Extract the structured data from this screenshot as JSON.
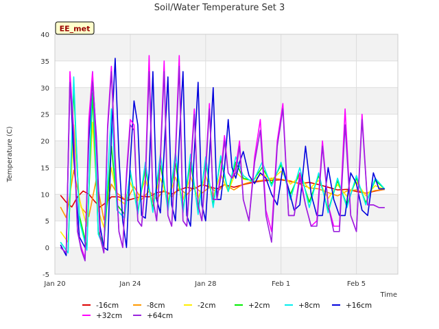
{
  "chart_data": {
    "type": "line",
    "title": "Soil/Water Temperature Set 3",
    "xlabel": "Time",
    "ylabel": "Temperature (C)",
    "site_badge": "EE_met",
    "xlim": [
      0,
      18.2
    ],
    "ylim": [
      -5,
      40
    ],
    "yticks": [
      -5,
      0,
      5,
      10,
      15,
      20,
      25,
      30,
      35,
      40
    ],
    "xticks": [
      {
        "day": 0,
        "label": "Jan 20"
      },
      {
        "day": 4,
        "label": "Jan 24"
      },
      {
        "day": 8,
        "label": "Jan 28"
      },
      {
        "day": 12,
        "label": "Feb 1"
      },
      {
        "day": 16,
        "label": "Feb 5"
      }
    ],
    "grid": true,
    "legend_position": "bottom",
    "x_units": "days since Jan 20",
    "series": [
      {
        "name": "-16cm",
        "color": "#dd0000",
        "x": [
          0.3,
          0.6,
          0.9,
          1.2,
          1.5,
          1.8,
          2.1,
          2.4,
          2.7,
          3.0,
          3.4,
          3.8,
          4.2,
          4.6,
          5.0,
          5.4,
          5.8,
          6.2,
          6.6,
          7.0,
          7.4,
          7.8,
          8.2,
          8.6,
          9.0,
          9.5,
          10.0,
          10.5,
          11.0,
          11.5,
          12.0,
          12.5,
          13.0,
          13.5,
          14.0,
          14.5,
          15.0,
          15.5,
          16.0,
          16.5,
          17.0,
          17.5
        ],
        "y": [
          9.8,
          8.5,
          7.6,
          9.5,
          10.6,
          10,
          8.7,
          7.6,
          8.4,
          9.5,
          9.5,
          8.8,
          9.2,
          9.6,
          9.5,
          10.3,
          10.5,
          10,
          10.8,
          11.3,
          11,
          11.8,
          11.4,
          11,
          11.8,
          11.3,
          11.8,
          12.2,
          12.5,
          12.6,
          12.7,
          12.4,
          12,
          12.2,
          11.8,
          11.3,
          10.8,
          10.9,
          10.5,
          10.2,
          10.6,
          10.9
        ]
      },
      {
        "name": "-8cm",
        "color": "#ff9900",
        "x": [
          0.3,
          0.6,
          1.0,
          1.4,
          1.8,
          2.2,
          2.6,
          3.0,
          3.3,
          3.8,
          4.2,
          4.6,
          5.0,
          5.4,
          5.8,
          6.2,
          6.6,
          7.0,
          7.4,
          7.8,
          8.2,
          8.6,
          9.0,
          9.5,
          10.0,
          10.5,
          11.0,
          11.5,
          12.0,
          12.5,
          13.0,
          13.5,
          14.0,
          14.5,
          15.0,
          15.5,
          16.0,
          16.5,
          17.0,
          17.5
        ],
        "y": [
          7.6,
          5.6,
          14.5,
          7.5,
          5.8,
          12.8,
          5.2,
          11.9,
          10.2,
          8.8,
          11.4,
          9,
          10.6,
          9.1,
          10.8,
          9.5,
          11.2,
          9.9,
          11.5,
          10.2,
          11.3,
          10.4,
          11.8,
          10.8,
          11.9,
          12.4,
          12.6,
          13,
          12.8,
          12.5,
          11.9,
          11.2,
          11,
          10.3,
          9.7,
          10.6,
          10.8,
          10.2,
          10.7,
          10.9
        ]
      },
      {
        "name": "-2cm",
        "color": "#ffee00",
        "x": [
          0.3,
          0.7,
          1.0,
          1.3,
          1.7,
          2.0,
          2.3,
          2.6,
          3.0,
          3.3,
          3.7,
          4.0,
          4.4,
          4.8,
          5.2,
          5.6,
          6.0,
          6.4,
          6.8,
          7.2,
          7.6,
          8.0,
          8.4,
          8.8,
          9.2,
          9.6,
          10.0,
          10.5,
          11.0,
          11.5,
          12.0,
          12.5,
          13.0,
          13.5,
          14.0,
          14.5,
          15.0,
          15.5,
          16.0,
          16.5,
          17.0,
          17.5
        ],
        "y": [
          3,
          1,
          23,
          9,
          4,
          23.5,
          7,
          3.8,
          15,
          9.2,
          8.2,
          12.2,
          8.8,
          12.8,
          8.5,
          13,
          8.8,
          13.2,
          9,
          13.3,
          9.2,
          13.4,
          9.5,
          13.8,
          10.5,
          14.2,
          12.8,
          12.6,
          13.8,
          12.7,
          14.3,
          11.9,
          13.2,
          11,
          12.6,
          9.2,
          11.8,
          9.6,
          12.3,
          9.7,
          11.6,
          10.9
        ]
      },
      {
        "name": "+2cm",
        "color": "#00ee00",
        "x": [
          0.3,
          0.7,
          1.0,
          1.3,
          1.7,
          2.0,
          2.3,
          2.6,
          3.0,
          3.3,
          3.7,
          4.0,
          4.4,
          4.8,
          5.2,
          5.6,
          6.0,
          6.4,
          6.8,
          7.2,
          7.6,
          8.0,
          8.4,
          8.8,
          9.2,
          9.6,
          10.0,
          10.5,
          11.0,
          11.5,
          12.0,
          12.5,
          13.0,
          13.5,
          14.0,
          14.5,
          15.0,
          15.5,
          16.0,
          16.5,
          17.0,
          17.5
        ],
        "y": [
          1,
          -1,
          30,
          6,
          0,
          29,
          3,
          0.5,
          19,
          8,
          6.2,
          14,
          6.8,
          14.8,
          7.4,
          15.5,
          7.8,
          15.8,
          7.2,
          16,
          7,
          16.2,
          8,
          16.5,
          10.5,
          16,
          13,
          12.5,
          15,
          12,
          15.5,
          10,
          14,
          8.5,
          13.5,
          7,
          12.5,
          8,
          13,
          8.4,
          12.6,
          11
        ]
      },
      {
        "name": "+8cm",
        "color": "#00eeee",
        "x": [
          0.3,
          0.7,
          1.0,
          1.3,
          1.7,
          2.0,
          2.3,
          2.6,
          3.0,
          3.3,
          3.7,
          4.0,
          4.4,
          4.8,
          5.2,
          5.6,
          6.0,
          6.4,
          6.8,
          7.2,
          7.6,
          8.0,
          8.4,
          8.8,
          9.2,
          9.6,
          10.0,
          10.5,
          11.0,
          11.5,
          12.0,
          12.5,
          13.0,
          13.5,
          14.0,
          14.5,
          15.0,
          15.5,
          16.0,
          16.5,
          17.0,
          17.5
        ],
        "y": [
          1,
          -1,
          32,
          5,
          -0.5,
          33,
          2.5,
          0,
          26,
          7,
          5.5,
          14.5,
          6.2,
          16,
          6.6,
          17.5,
          6.8,
          17.8,
          6.5,
          17.5,
          6.2,
          17,
          7.5,
          17.2,
          10.5,
          17,
          13.5,
          12.2,
          16,
          11.5,
          16,
          9,
          15,
          7.5,
          14,
          6.5,
          13,
          7.5,
          13.5,
          8,
          13,
          11
        ]
      },
      {
        "name": "+16cm",
        "color": "#0000dd",
        "x": [
          0.3,
          0.6,
          0.8,
          1.0,
          1.3,
          1.6,
          1.8,
          2.0,
          2.2,
          2.4,
          2.6,
          2.8,
          3.0,
          3.2,
          3.4,
          3.6,
          3.8,
          4.0,
          4.2,
          4.4,
          4.6,
          4.8,
          5.0,
          5.2,
          5.4,
          5.6,
          5.8,
          6.0,
          6.2,
          6.4,
          6.6,
          6.8,
          7.0,
          7.2,
          7.4,
          7.6,
          7.8,
          8.0,
          8.2,
          8.4,
          8.6,
          8.8,
          9.0,
          9.2,
          9.4,
          9.6,
          9.8,
          10.0,
          10.3,
          10.6,
          10.9,
          11.2,
          11.5,
          11.8,
          12.1,
          12.4,
          12.7,
          13.0,
          13.3,
          13.6,
          13.9,
          14.2,
          14.5,
          14.8,
          15.1,
          15.4,
          15.7,
          16.0,
          16.3,
          16.6,
          16.9,
          17.2,
          17.5
        ],
        "y": [
          0.5,
          -1.5,
          32,
          17,
          2,
          0,
          20,
          32,
          21,
          4,
          0,
          -0.5,
          21,
          35.5,
          17,
          5,
          0,
          16,
          27.5,
          23,
          6,
          5.5,
          14,
          33,
          9,
          6.5,
          18,
          32,
          8,
          5,
          20,
          33,
          6,
          4,
          18,
          31,
          8,
          5,
          17,
          30,
          9,
          9,
          15,
          24,
          15,
          13,
          16,
          18,
          13.5,
          12,
          14,
          13,
          10,
          8,
          15,
          11,
          7,
          8,
          19,
          10,
          6,
          6,
          15,
          9,
          6,
          6,
          14,
          12,
          7,
          6,
          14,
          11,
          11
        ]
      },
      {
        "name": "+32cm",
        "color": "#ff00ff",
        "x": [
          0.3,
          0.6,
          0.8,
          1.0,
          1.2,
          1.4,
          1.6,
          1.8,
          2.0,
          2.2,
          2.4,
          2.6,
          2.8,
          3.0,
          3.2,
          3.4,
          3.6,
          3.8,
          4.0,
          4.2,
          4.4,
          4.6,
          4.8,
          5.0,
          5.2,
          5.4,
          5.6,
          5.8,
          6.0,
          6.2,
          6.4,
          6.6,
          6.8,
          7.0,
          7.2,
          7.4,
          7.6,
          7.8,
          8.0,
          8.2,
          8.4,
          8.6,
          8.8,
          9.0,
          9.2,
          9.4,
          9.6,
          9.8,
          10.0,
          10.3,
          10.6,
          10.9,
          11.2,
          11.5,
          11.8,
          12.1,
          12.4,
          12.7,
          13.0,
          13.3,
          13.6,
          13.9,
          14.2,
          14.5,
          14.8,
          15.1,
          15.4,
          15.7,
          16.0,
          16.3,
          16.6,
          16.9,
          17.2,
          17.5
        ],
        "y": [
          0,
          -1,
          33,
          22,
          3,
          0,
          -2,
          24,
          33,
          20,
          2,
          -1,
          23,
          34,
          17,
          3,
          0,
          14,
          24,
          23,
          5,
          4,
          13,
          36,
          9,
          5,
          17,
          35,
          6,
          4,
          18,
          36,
          5,
          4,
          15,
          26,
          8,
          5,
          15,
          27,
          9,
          9,
          14,
          21,
          14,
          13,
          15,
          20,
          9,
          5,
          17,
          24,
          7,
          3,
          20,
          27,
          6,
          6,
          14,
          8,
          4,
          5,
          20,
          8,
          4,
          4,
          26,
          6,
          3,
          25,
          8,
          8,
          7.5,
          7.5
        ]
      },
      {
        "name": "+64cm",
        "color": "#9922dd",
        "x": [
          0.3,
          0.6,
          0.8,
          1.0,
          1.2,
          1.4,
          1.6,
          1.8,
          2.0,
          2.2,
          2.4,
          2.6,
          2.8,
          3.0,
          3.2,
          3.4,
          3.6,
          3.8,
          4.0,
          4.2,
          4.4,
          4.6,
          4.8,
          5.0,
          5.2,
          5.4,
          5.6,
          5.8,
          6.0,
          6.2,
          6.4,
          6.6,
          6.8,
          7.0,
          7.2,
          7.4,
          7.6,
          7.8,
          8.0,
          8.2,
          8.4,
          8.6,
          8.8,
          9.0,
          9.2,
          9.4,
          9.6,
          9.8,
          10.0,
          10.3,
          10.6,
          10.9,
          11.2,
          11.5,
          11.8,
          12.1,
          12.4,
          12.7,
          13.0,
          13.3,
          13.6,
          13.9,
          14.2,
          14.5,
          14.8,
          15.1,
          15.4,
          15.7,
          16.0,
          16.3,
          16.6,
          16.9,
          17.2,
          17.5
        ],
        "y": [
          0,
          -1,
          31,
          21,
          3,
          -0.5,
          -2.5,
          22,
          31,
          19,
          2,
          -1,
          22,
          33,
          16,
          3,
          0,
          13,
          23,
          22,
          5,
          4,
          12,
          33,
          9,
          5,
          16,
          33,
          6,
          4,
          17,
          34,
          5,
          4,
          14,
          25,
          8,
          5,
          14,
          26,
          9,
          9,
          13,
          20,
          14,
          13,
          14,
          19,
          9,
          5,
          16,
          22,
          6,
          1,
          19,
          26,
          6,
          6,
          13,
          8,
          4,
          4,
          19,
          8,
          3,
          3,
          23,
          6,
          3,
          24,
          8,
          8,
          7.5,
          7.5
        ]
      }
    ]
  }
}
